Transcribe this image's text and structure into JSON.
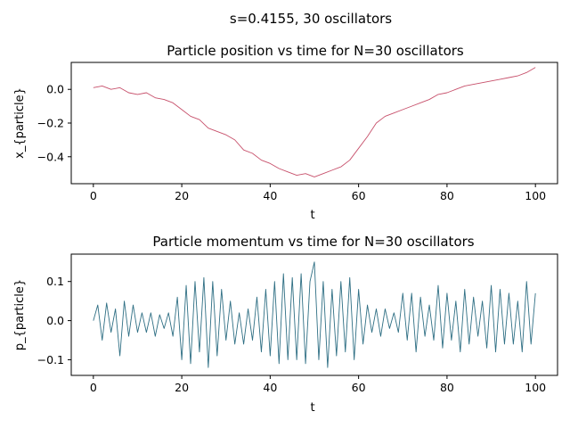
{
  "figure": {
    "suptitle": "s=0.4155, 30 oscillators"
  },
  "chart_data": [
    {
      "type": "line",
      "title": "Particle position vs time for N=30 oscillators",
      "xlabel": "t",
      "ylabel": "x_{particle}",
      "xlim": [
        -5,
        105
      ],
      "ylim": [
        -0.56,
        0.16
      ],
      "xticks": [
        0,
        20,
        40,
        60,
        80,
        100
      ],
      "yticks": [
        0.0,
        -0.2,
        -0.4
      ],
      "ytick_labels": [
        "0.0",
        "−0.2",
        "−0.4"
      ],
      "color": "#c7506b",
      "series": [
        {
          "x": [
            0,
            2,
            4,
            6,
            8,
            10,
            12,
            14,
            16,
            18,
            20,
            22,
            24,
            26,
            28,
            30,
            32,
            34,
            36,
            38,
            40,
            42,
            44,
            46,
            48,
            50,
            52,
            54,
            56,
            58,
            60,
            62,
            64,
            66,
            68,
            70,
            72,
            74,
            76,
            78,
            80,
            82,
            84,
            86,
            88,
            90,
            92,
            94,
            96,
            98,
            100
          ],
          "values": [
            0.01,
            0.02,
            0.0,
            0.01,
            -0.02,
            -0.03,
            -0.02,
            -0.05,
            -0.06,
            -0.08,
            -0.12,
            -0.16,
            -0.18,
            -0.23,
            -0.25,
            -0.27,
            -0.3,
            -0.36,
            -0.38,
            -0.42,
            -0.44,
            -0.47,
            -0.49,
            -0.51,
            -0.5,
            -0.52,
            -0.5,
            -0.48,
            -0.46,
            -0.42,
            -0.35,
            -0.28,
            -0.2,
            -0.16,
            -0.14,
            -0.12,
            -0.1,
            -0.08,
            -0.06,
            -0.03,
            -0.02,
            0.0,
            0.02,
            0.03,
            0.04,
            0.05,
            0.06,
            0.07,
            0.08,
            0.1,
            0.13
          ]
        }
      ]
    },
    {
      "type": "line",
      "title": "Particle momentum vs time for N=30 oscillators",
      "xlabel": "t",
      "ylabel": "p_{particle}",
      "xlim": [
        -5,
        105
      ],
      "ylim": [
        -0.14,
        0.17
      ],
      "xticks": [
        0,
        20,
        40,
        60,
        80,
        100
      ],
      "yticks": [
        0.1,
        0.0,
        -0.1
      ],
      "ytick_labels": [
        "0.1",
        "0.0",
        "−0.1"
      ],
      "color": "#2f6f84",
      "series": [
        {
          "x": [
            0,
            1,
            2,
            3,
            4,
            5,
            6,
            7,
            8,
            9,
            10,
            11,
            12,
            13,
            14,
            15,
            16,
            17,
            18,
            19,
            20,
            21,
            22,
            23,
            24,
            25,
            26,
            27,
            28,
            29,
            30,
            31,
            32,
            33,
            34,
            35,
            36,
            37,
            38,
            39,
            40,
            41,
            42,
            43,
            44,
            45,
            46,
            47,
            48,
            49,
            50,
            51,
            52,
            53,
            54,
            55,
            56,
            57,
            58,
            59,
            60,
            61,
            62,
            63,
            64,
            65,
            66,
            67,
            68,
            69,
            70,
            71,
            72,
            73,
            74,
            75,
            76,
            77,
            78,
            79,
            80,
            81,
            82,
            83,
            84,
            85,
            86,
            87,
            88,
            89,
            90,
            91,
            92,
            93,
            94,
            95,
            96,
            97,
            98,
            99,
            100
          ],
          "values": [
            0.0,
            0.04,
            -0.05,
            0.045,
            -0.03,
            0.03,
            -0.09,
            0.05,
            -0.04,
            0.04,
            -0.03,
            0.02,
            -0.03,
            0.02,
            -0.04,
            0.015,
            -0.02,
            0.02,
            -0.04,
            0.06,
            -0.1,
            0.09,
            -0.11,
            0.1,
            -0.08,
            0.11,
            -0.12,
            0.1,
            -0.09,
            0.08,
            -0.05,
            0.05,
            -0.06,
            0.02,
            -0.06,
            0.03,
            -0.05,
            0.06,
            -0.08,
            0.08,
            -0.09,
            0.1,
            -0.11,
            0.12,
            -0.1,
            0.11,
            -0.1,
            0.12,
            -0.11,
            0.1,
            0.15,
            -0.1,
            0.1,
            -0.12,
            0.08,
            -0.09,
            0.1,
            -0.08,
            0.11,
            -0.1,
            0.08,
            -0.06,
            0.04,
            -0.03,
            0.03,
            -0.04,
            0.03,
            -0.02,
            0.02,
            -0.03,
            0.07,
            -0.05,
            0.07,
            -0.08,
            0.06,
            -0.04,
            0.04,
            -0.05,
            0.09,
            -0.07,
            0.07,
            -0.05,
            0.05,
            -0.08,
            0.08,
            -0.06,
            0.06,
            -0.04,
            0.05,
            -0.07,
            0.09,
            -0.08,
            0.08,
            -0.06,
            0.07,
            -0.06,
            0.05,
            -0.08,
            0.1,
            -0.06,
            0.07
          ]
        }
      ]
    }
  ]
}
